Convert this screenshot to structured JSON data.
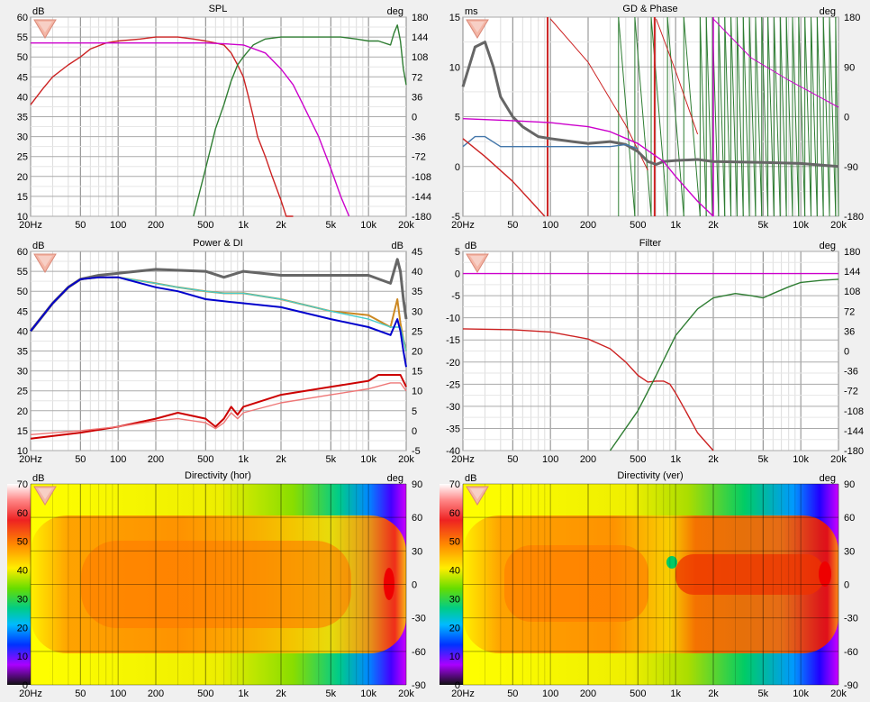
{
  "chart_data": [
    {
      "id": "spl",
      "type": "line",
      "title": "SPL",
      "left_unit": "dB",
      "right_unit": "deg",
      "x_scale": "log",
      "xlim": [
        20,
        20000
      ],
      "x_ticks": [
        "20Hz",
        "50",
        "100",
        "200",
        "500",
        "1k",
        "2k",
        "5k",
        "10k",
        "20k"
      ],
      "ylim": [
        10,
        60
      ],
      "y_ticks": [
        "60",
        "55",
        "50",
        "45",
        "40",
        "35",
        "30",
        "25",
        "20",
        "15",
        "10"
      ],
      "y2_ticks": [
        "180",
        "144",
        "108",
        "72",
        "36",
        "0",
        "-36",
        "-72",
        "-108",
        "-144",
        "-180"
      ],
      "grid": true,
      "series": [
        {
          "color": "#cc2222",
          "x": [
            20,
            25,
            30,
            40,
            50,
            60,
            80,
            100,
            150,
            200,
            300,
            400,
            500,
            600,
            700,
            800,
            900,
            1000,
            1100,
            1200,
            1300,
            1500,
            1700,
            2000,
            2200,
            2500
          ],
          "y": [
            38,
            42,
            45,
            48,
            50,
            52,
            53.5,
            54,
            54.5,
            55,
            55,
            54.5,
            54,
            53.5,
            53,
            51,
            48,
            45,
            40,
            35,
            30,
            25,
            20,
            14,
            10,
            10
          ]
        },
        {
          "color": "#2e7d32",
          "x": [
            400,
            500,
            600,
            700,
            800,
            900,
            1000,
            1200,
            1500,
            2000,
            3000,
            4000,
            5000,
            6000,
            8000,
            10000,
            12000,
            15000,
            16000,
            17000,
            18000,
            19000,
            20000
          ],
          "y": [
            10,
            22,
            32,
            38,
            44,
            48,
            50,
            53,
            54.5,
            55,
            55,
            55,
            55,
            55,
            54.5,
            54,
            54,
            53,
            56,
            58,
            54,
            47,
            43
          ]
        },
        {
          "color": "#cc00cc",
          "x": [
            20,
            50,
            100,
            200,
            500,
            700,
            1000,
            1500,
            2000,
            2500,
            3000,
            4000,
            5000,
            6000,
            7000
          ],
          "y": [
            53.5,
            53.5,
            53.5,
            53.5,
            53.5,
            53.3,
            53,
            51,
            47,
            43,
            38,
            30,
            22,
            15,
            10
          ]
        }
      ]
    },
    {
      "id": "gd-phase",
      "type": "line",
      "title": "GD & Phase",
      "left_unit": "ms",
      "right_unit": "deg",
      "x_scale": "log",
      "xlim": [
        20,
        20000
      ],
      "x_ticks": [
        "20Hz",
        "50",
        "100",
        "200",
        "500",
        "1k",
        "2k",
        "5k",
        "10k",
        "20k"
      ],
      "ylim": [
        -5,
        15
      ],
      "y_ticks": [
        "15",
        "10",
        "5",
        "0",
        "-5"
      ],
      "y2_ticks": [
        "180",
        "90",
        "0",
        "-90",
        "-180"
      ],
      "grid": true,
      "series": [
        {
          "color": "#666666",
          "x": [
            20,
            25,
            30,
            35,
            40,
            50,
            60,
            80,
            100,
            150,
            200,
            300,
            400,
            500,
            600,
            700,
            800,
            1000,
            1500,
            2000,
            5000,
            10000,
            20000
          ],
          "y": [
            8,
            12,
            12.5,
            10,
            7,
            5,
            4,
            3,
            2.8,
            2.5,
            2.3,
            2.5,
            2.2,
            1.5,
            0.5,
            0.2,
            0.5,
            0.6,
            0.7,
            0.5,
            0.4,
            0.3,
            0
          ]
        },
        {
          "color": "#4477aa",
          "x": [
            20,
            25,
            30,
            40,
            50,
            100,
            200,
            300,
            400,
            500
          ],
          "y": [
            2,
            3,
            3,
            2,
            2,
            2,
            2,
            2,
            2.2,
            1.8
          ]
        },
        {
          "color": "#cc00cc",
          "x": [
            20,
            50,
            100,
            200,
            300,
            500,
            800,
            1000,
            1500,
            2000
          ],
          "y": [
            4.8,
            4.6,
            4.4,
            4,
            3.5,
            2.3,
            0.5,
            -1,
            -3.5,
            -5
          ]
        },
        {
          "color": "#cc2222",
          "x": [
            20,
            30,
            50,
            70,
            90
          ],
          "y": [
            2.8,
            1,
            -1.5,
            -3.5,
            -5
          ]
        }
      ]
    },
    {
      "id": "power-di",
      "type": "line",
      "title": "Power & DI",
      "left_unit": "dB",
      "right_unit": "dB",
      "x_scale": "log",
      "xlim": [
        20,
        20000
      ],
      "x_ticks": [
        "20Hz",
        "50",
        "100",
        "200",
        "500",
        "1k",
        "2k",
        "5k",
        "10k",
        "20k"
      ],
      "ylim": [
        10,
        60
      ],
      "y_ticks": [
        "60",
        "55",
        "50",
        "45",
        "40",
        "35",
        "30",
        "25",
        "20",
        "15",
        "10"
      ],
      "y2_ticks": [
        "45",
        "40",
        "35",
        "30",
        "25",
        "20",
        "15",
        "10",
        "5",
        "0",
        "-5"
      ],
      "grid": true,
      "series": [
        {
          "color": "#666666",
          "x": [
            20,
            30,
            40,
            50,
            70,
            100,
            200,
            500,
            700,
            1000,
            2000,
            5000,
            10000,
            15000,
            17000,
            18000,
            19000,
            20000
          ],
          "y": [
            40,
            47,
            51,
            53,
            54,
            54.5,
            55.5,
            55,
            53.5,
            55,
            54,
            54,
            54,
            52,
            58,
            55,
            48,
            43
          ]
        },
        {
          "color": "#cc8822",
          "x": [
            20,
            30,
            40,
            50,
            70,
            100,
            200,
            300,
            500,
            700,
            1000,
            2000,
            5000,
            10000,
            15000,
            17000,
            18000,
            19000,
            20000
          ],
          "y": [
            40,
            47,
            51,
            53,
            53.5,
            53.5,
            52,
            51,
            50,
            49.5,
            49.5,
            48,
            45,
            44,
            41,
            48,
            42,
            38,
            35
          ]
        },
        {
          "color": "#44cccc",
          "x": [
            20,
            30,
            40,
            50,
            70,
            100,
            200,
            300,
            500,
            700,
            1000,
            2000,
            5000,
            10000,
            15000,
            18000,
            20000
          ],
          "y": [
            40,
            47,
            51,
            53,
            53.5,
            53.5,
            52,
            51,
            50,
            49.5,
            49.5,
            48,
            45,
            43,
            41,
            41,
            35
          ]
        },
        {
          "color": "#0000cc",
          "x": [
            20,
            30,
            40,
            50,
            70,
            100,
            200,
            300,
            500,
            700,
            1000,
            2000,
            5000,
            10000,
            15000,
            17000,
            18000,
            19000,
            20000
          ],
          "y": [
            40,
            47,
            51,
            53,
            53.5,
            53.5,
            51,
            50,
            48,
            47.5,
            47,
            46,
            43,
            41,
            39,
            43,
            40,
            35,
            31
          ]
        },
        {
          "color": "#cc0000",
          "x": [
            20,
            50,
            100,
            200,
            300,
            500,
            600,
            700,
            800,
            900,
            1000,
            2000,
            5000,
            10000,
            12000,
            15000,
            18000,
            20000
          ],
          "y": [
            13,
            14.5,
            16,
            18,
            19.5,
            18,
            16,
            18,
            21,
            19,
            21,
            24,
            26,
            27.5,
            29,
            29,
            29,
            26
          ]
        },
        {
          "color": "#ee7777",
          "x": [
            20,
            50,
            100,
            200,
            300,
            500,
            600,
            700,
            800,
            900,
            1000,
            2000,
            5000,
            10000,
            15000,
            18000,
            20000
          ],
          "y": [
            14,
            15,
            16,
            17.5,
            18,
            17,
            15.5,
            17,
            19.5,
            18,
            19.5,
            22,
            24,
            25.5,
            27,
            27,
            25
          ]
        }
      ]
    },
    {
      "id": "filter",
      "type": "line",
      "title": "Filter",
      "left_unit": "dB",
      "right_unit": "deg",
      "x_scale": "log",
      "xlim": [
        20,
        20000
      ],
      "x_ticks": [
        "20Hz",
        "50",
        "100",
        "200",
        "500",
        "1k",
        "2k",
        "5k",
        "10k",
        "20k"
      ],
      "ylim": [
        -40,
        5
      ],
      "y_ticks": [
        "5",
        "0",
        "-5",
        "-10",
        "-15",
        "-20",
        "-25",
        "-30",
        "-35",
        "-40"
      ],
      "y2_ticks": [
        "180",
        "144",
        "108",
        "72",
        "36",
        "0",
        "-36",
        "-72",
        "-108",
        "-144",
        "-180"
      ],
      "grid": true,
      "series": [
        {
          "color": "#cc00cc",
          "x": [
            20,
            20000
          ],
          "y": [
            0,
            0
          ]
        },
        {
          "color": "#cc2222",
          "x": [
            20,
            50,
            100,
            200,
            300,
            400,
            500,
            600,
            700,
            800,
            900,
            1000,
            1200,
            1500,
            2000
          ],
          "y": [
            -12.5,
            -12.7,
            -13.2,
            -14.8,
            -17,
            -20,
            -23,
            -24.5,
            -24.3,
            -24.3,
            -25,
            -27,
            -31,
            -36,
            -40
          ]
        },
        {
          "color": "#2e7d32",
          "x": [
            300,
            500,
            700,
            1000,
            1500,
            2000,
            3000,
            4000,
            5000,
            6000,
            8000,
            10000,
            15000,
            20000
          ],
          "y": [
            -40,
            -31,
            -23,
            -14,
            -8,
            -5.5,
            -4.5,
            -5,
            -5.5,
            -4.5,
            -3,
            -2,
            -1.5,
            -1.3
          ]
        }
      ]
    },
    {
      "id": "directivity-hor",
      "type": "heatmap",
      "title": "Directivity (hor)",
      "left_unit": "dB",
      "right_unit": "deg",
      "x_scale": "log",
      "xlim": [
        20,
        20000
      ],
      "x_ticks": [
        "20Hz",
        "50",
        "100",
        "200",
        "500",
        "1k",
        "2k",
        "5k",
        "10k",
        "20k"
      ],
      "y_ticks": [
        "90",
        "60",
        "30",
        "0",
        "-30",
        "-60",
        "-90"
      ],
      "colorbar_ticks": [
        "70",
        "60",
        "50",
        "40",
        "30",
        "20",
        "10",
        "0"
      ],
      "grid": true
    },
    {
      "id": "directivity-ver",
      "type": "heatmap",
      "title": "Directivity (ver)",
      "left_unit": "dB",
      "right_unit": "deg",
      "x_scale": "log",
      "xlim": [
        20,
        20000
      ],
      "x_ticks": [
        "20Hz",
        "50",
        "100",
        "200",
        "500",
        "1k",
        "2k",
        "5k",
        "10k",
        "20k"
      ],
      "y_ticks": [
        "90",
        "60",
        "30",
        "0",
        "-30",
        "-60",
        "-90"
      ],
      "colorbar_ticks": [
        "70",
        "60",
        "50",
        "40",
        "30",
        "20",
        "10",
        "0"
      ],
      "grid": true
    }
  ]
}
